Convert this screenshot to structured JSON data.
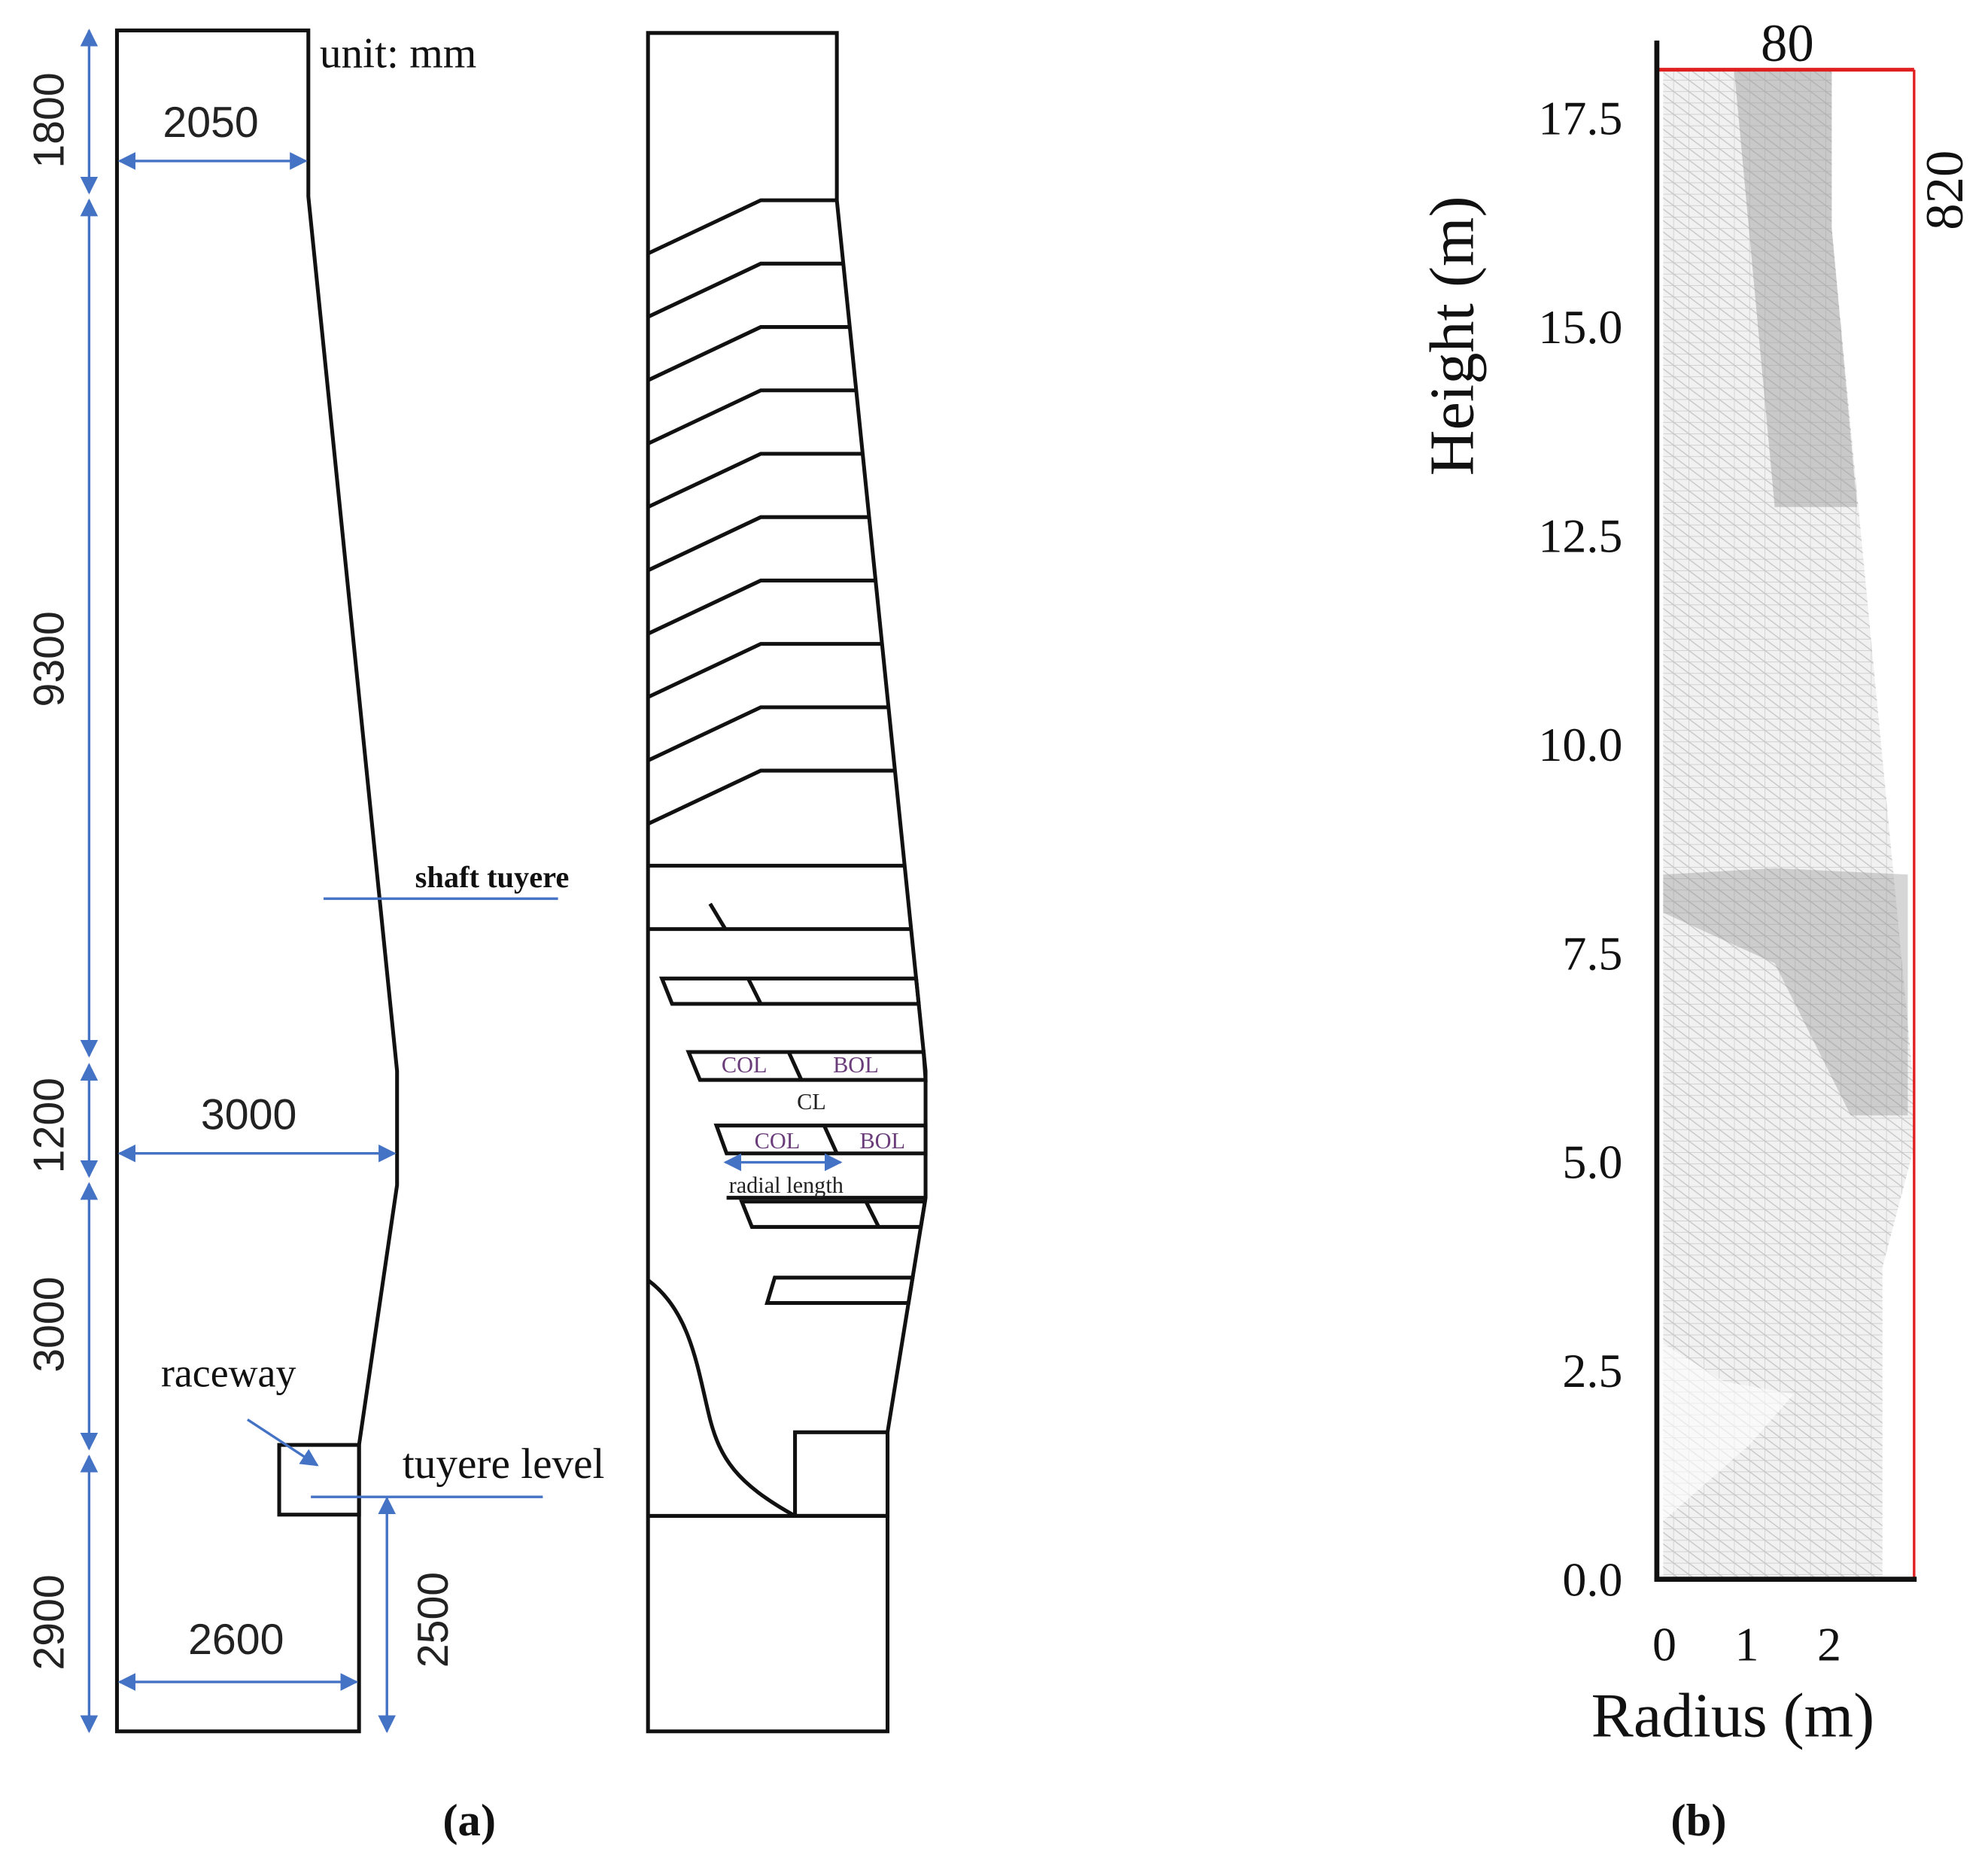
{
  "panel_a": {
    "unit": "unit: mm",
    "dimensions": {
      "top_height": "1800",
      "shaft_height": "9300",
      "belly_height": "1200",
      "bosh_height": "3000",
      "hearth_height": "2900",
      "top_width": "2050",
      "belly_width": "3000",
      "hearth_width": "2600",
      "tuyere_height": "2500"
    },
    "labels": {
      "shaft_tuyere": "shaft tuyere",
      "raceway": "raceway",
      "tuyere_level": "tuyere  level"
    },
    "layers": {
      "col_1": "COL",
      "bol_1": "BOL",
      "cl": "CL",
      "col_2": "COL",
      "bol_2": "BOL",
      "radial_length": "radial length"
    },
    "caption": "(a)"
  },
  "panel_b": {
    "top_width": "80",
    "right_height": "820",
    "y_label": "Height (m)",
    "x_label": "Radius (m)",
    "y_ticks": [
      "0.0",
      "2.5",
      "5.0",
      "7.5",
      "10.0",
      "12.5",
      "15.0",
      "17.5"
    ],
    "x_ticks": [
      "0",
      "1",
      "2"
    ],
    "caption": "(b)"
  }
}
